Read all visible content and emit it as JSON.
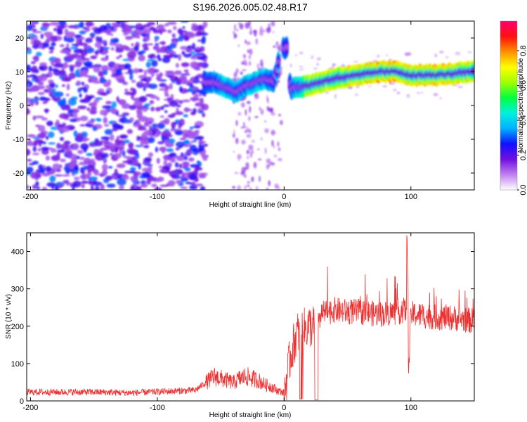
{
  "title": "S196.2026.005.02.48.R17",
  "chart_data": [
    {
      "type": "heatmap",
      "name": "spectrogram",
      "xlabel": "Height of straight line (km)",
      "ylabel": "Frequency (Hz)",
      "xlim": [
        -203,
        150
      ],
      "ylim": [
        -25,
        25
      ],
      "xticks": [
        -200,
        -100,
        0,
        100
      ],
      "yticks": [
        -20,
        -10,
        0,
        10,
        20
      ],
      "colorbar": {
        "label": "Normalized spectral amplitude",
        "range": [
          0.0,
          0.97
        ],
        "ticks": [
          0.0,
          0.2,
          0.4,
          0.6,
          0.8
        ],
        "colormap": [
          "#ffffff",
          "#c080f0",
          "#7010e0",
          "#1010ff",
          "#00b0ff",
          "#00f0e0",
          "#00ff40",
          "#a0ff00",
          "#ffff00",
          "#ff9000",
          "#ff1010",
          "#ff0070"
        ]
      },
      "signal_track": {
        "x": [
          -63,
          -55,
          -45,
          -38,
          -30,
          -22,
          -15,
          -8,
          -2,
          2,
          5,
          20,
          40,
          60,
          75,
          90,
          100,
          120,
          150
        ],
        "frequency": [
          7,
          7,
          5,
          4,
          6,
          7,
          8,
          7,
          17,
          17,
          5,
          6,
          8,
          9,
          10,
          10,
          9,
          9,
          10
        ],
        "peak_amplitude": [
          0.3,
          0.35,
          0.45,
          0.4,
          0.4,
          0.45,
          0.4,
          0.35,
          0.35,
          0.3,
          0.3,
          0.75,
          0.75,
          0.8,
          0.85,
          0.85,
          0.8,
          0.85,
          0.75
        ]
      }
    },
    {
      "type": "line",
      "name": "snr",
      "xlabel": "Height of straight line (km)",
      "ylabel": "SNR (10 * v/v)",
      "xlim": [
        -203,
        150
      ],
      "ylim": [
        0,
        450
      ],
      "xticks": [
        -200,
        -100,
        0,
        100
      ],
      "yticks": [
        0,
        100,
        200,
        300,
        400
      ],
      "color": "#f03030",
      "series": [
        {
          "name": "SNR",
          "x": [
            -203,
            -180,
            -150,
            -120,
            -90,
            -70,
            -62,
            -55,
            -50,
            -45,
            -40,
            -35,
            -30,
            -25,
            -20,
            -15,
            -10,
            -5,
            0,
            5,
            10,
            15,
            20,
            25,
            30,
            40,
            50,
            60,
            70,
            80,
            90,
            97,
            98,
            100,
            110,
            120,
            130,
            140,
            150
          ],
          "y": [
            20,
            20,
            20,
            18,
            22,
            25,
            45,
            60,
            55,
            50,
            45,
            55,
            60,
            55,
            50,
            40,
            35,
            25,
            20,
            120,
            180,
            190,
            200,
            200,
            230,
            240,
            235,
            235,
            230,
            230,
            235,
            240,
            60,
            230,
            225,
            220,
            220,
            215,
            210
          ]
        }
      ]
    }
  ]
}
